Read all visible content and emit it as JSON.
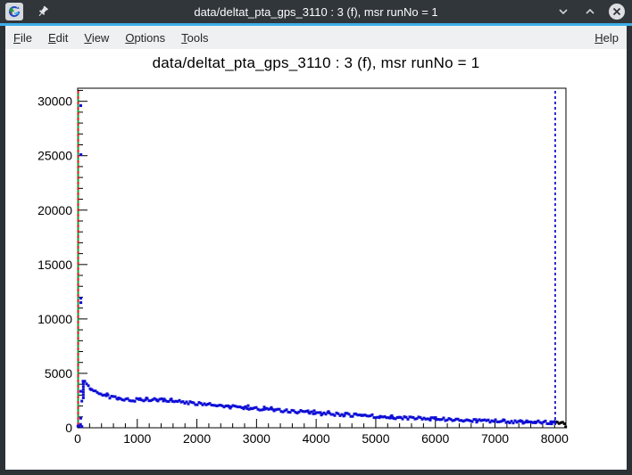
{
  "window": {
    "title": "data/deltat_pta_gps_3110 : 3 (f), msr runNo = 1",
    "controls": {
      "minimize": "chevron-down",
      "maximize": "chevron-up",
      "close": "circled-x",
      "pin": "pushpin",
      "app_icon": "musrview-logo"
    },
    "accent_color": "#3daee9",
    "titlebar_color": "#31363b"
  },
  "menu_bar": {
    "items": [
      {
        "label": "File"
      },
      {
        "label": "Edit"
      },
      {
        "label": "View"
      },
      {
        "label": "Options"
      },
      {
        "label": "Tools"
      }
    ],
    "right_item": {
      "label": "Help"
    }
  },
  "plot": {
    "title": "data/deltat_pta_gps_3110 : 3 (f), msr runNo = 1"
  },
  "chart_data": {
    "type": "scatter",
    "title": "data/deltat_pta_gps_3110 : 3 (f), msr runNo = 1",
    "xlabel": "",
    "ylabel": "",
    "xlim": [
      0,
      8190
    ],
    "ylim": [
      0,
      31200
    ],
    "x_ticks": [
      0,
      1000,
      2000,
      3000,
      4000,
      5000,
      6000,
      7000,
      8000
    ],
    "x_minor_step": 200,
    "y_ticks": [
      0,
      5000,
      10000,
      15000,
      20000,
      25000,
      30000
    ],
    "y_minor_step": 1000,
    "grid": false,
    "legend": false,
    "marker_color": "#0e0ed6",
    "tail_color": "#000000",
    "background_band": {
      "x_start": 4,
      "x_end": 82,
      "y": 210,
      "spread": 240
    },
    "spike_points": [
      [
        52,
        29600
      ],
      [
        55,
        25100
      ],
      [
        54,
        11900
      ],
      [
        54,
        11500
      ],
      [
        52,
        3350
      ],
      [
        52,
        880
      ],
      [
        70,
        2450
      ]
    ],
    "spike_column": {
      "x": 95,
      "y_top": 4260,
      "y_bottom": 2750
    },
    "band": {
      "x": [
        90,
        240,
        390,
        540,
        690,
        840,
        990,
        1140,
        1290,
        1440,
        1590,
        1740,
        1890,
        2040,
        2190,
        2340,
        2490,
        2640,
        2790,
        2940,
        3090,
        3240,
        3390,
        3540,
        3690,
        3840,
        3990,
        4140,
        4290,
        4440,
        4590,
        4740,
        4890,
        5040,
        5190,
        5340,
        5490,
        5640,
        5790,
        5940,
        6090,
        6240,
        6390,
        6540,
        6690,
        6840,
        6990,
        7140,
        7290,
        7440,
        7590,
        7740,
        7890,
        8040
      ],
      "y": [
        4300,
        3500,
        3080,
        2850,
        2680,
        2600,
        2560,
        2600,
        2580,
        2520,
        2460,
        2390,
        2310,
        2230,
        2150,
        2080,
        2010,
        1940,
        1870,
        1800,
        1730,
        1670,
        1610,
        1550,
        1490,
        1430,
        1380,
        1320,
        1270,
        1220,
        1170,
        1130,
        1080,
        1040,
        1000,
        960,
        920,
        880,
        850,
        810,
        780,
        750,
        720,
        690,
        660,
        640,
        610,
        590,
        560,
        540,
        520,
        500,
        480,
        465
      ],
      "thickness": 280
    },
    "black_tail": {
      "x_start": 8045,
      "x_end": 8185,
      "y_start": 460,
      "y_end": 430,
      "thickness": 260
    },
    "black_corner_point": [
      8185,
      80
    ],
    "vlines": [
      {
        "x": 8,
        "color": "#ee1111",
        "dash_offset": 0
      },
      {
        "x": 8,
        "color": "#00a33b",
        "dash_offset": 3
      },
      {
        "x": 8010,
        "color": "#2b2bd0",
        "dash_offset": 0
      }
    ]
  }
}
